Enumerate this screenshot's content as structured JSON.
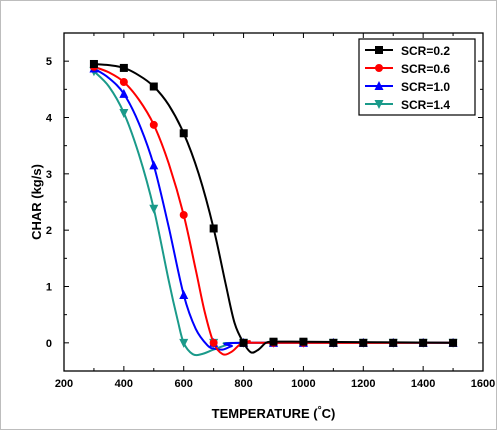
{
  "chart_data": {
    "type": "line",
    "title": "",
    "xlabel": "TEMPERATURE (°C)",
    "ylabel": "CHAR (kg/s)",
    "xlim": [
      200,
      1600
    ],
    "ylim": [
      -0.5,
      5.5
    ],
    "xticks": [
      "200",
      "400",
      "600",
      "800",
      "1000",
      "1200",
      "1400",
      "1600"
    ],
    "yticks": [
      "0",
      "1",
      "2",
      "3",
      "4",
      "5"
    ],
    "grid": false,
    "legend_position": "top-right",
    "series": [
      {
        "name": "SCR=0.2",
        "color": "#000000",
        "marker": "square",
        "x": [
          300,
          400,
          500,
          600,
          700,
          800,
          900,
          1000,
          1100,
          1200,
          1300,
          1400,
          1500
        ],
        "y": [
          4.95,
          4.88,
          4.55,
          3.72,
          2.03,
          0.0,
          0.02,
          0.02,
          0.0,
          0.0,
          0.0,
          0.0,
          0.0
        ]
      },
      {
        "name": "SCR=0.6",
        "color": "#ff0000",
        "marker": "circle",
        "x": [
          300,
          400,
          500,
          600,
          700,
          800,
          900,
          1000,
          1100,
          1200,
          1300,
          1400,
          1500
        ],
        "y": [
          4.9,
          4.63,
          3.87,
          2.27,
          0.0,
          0.0,
          0.0,
          0.0,
          0.0,
          0.0,
          0.0,
          0.0,
          0.0
        ]
      },
      {
        "name": "SCR=1.0",
        "color": "#0000ff",
        "marker": "triangle-up",
        "x": [
          300,
          400,
          500,
          600,
          700,
          800,
          900,
          1000,
          1100,
          1200,
          1300,
          1400,
          1500
        ],
        "y": [
          4.87,
          4.42,
          3.15,
          0.85,
          0.0,
          0.0,
          0.0,
          0.0,
          0.0,
          0.0,
          0.0,
          0.0,
          0.0
        ]
      },
      {
        "name": "SCR=1.4",
        "color": "#1a9a8a",
        "marker": "triangle-down",
        "x": [
          300,
          400,
          500,
          600,
          700,
          800,
          900,
          1000,
          1100,
          1200,
          1300,
          1400,
          1500
        ],
        "y": [
          4.82,
          4.08,
          2.38,
          0.0,
          0.0,
          0.0,
          0.0,
          0.0,
          0.0,
          0.0,
          0.0,
          0.0,
          0.0
        ]
      }
    ],
    "curve_shape": {
      "SCR=0.2": [
        [
          300,
          4.95
        ],
        [
          350,
          4.93
        ],
        [
          400,
          4.88
        ],
        [
          450,
          4.75
        ],
        [
          500,
          4.55
        ],
        [
          550,
          4.22
        ],
        [
          600,
          3.72
        ],
        [
          650,
          3.0
        ],
        [
          700,
          2.03
        ],
        [
          740,
          1.05
        ],
        [
          770,
          0.35
        ],
        [
          800,
          0.0
        ],
        [
          825,
          -0.17
        ],
        [
          850,
          -0.12
        ],
        [
          875,
          0.0
        ],
        [
          900,
          0.02
        ],
        [
          1000,
          0.02
        ],
        [
          1500,
          0.0
        ]
      ],
      "SCR=0.6": [
        [
          300,
          4.9
        ],
        [
          350,
          4.8
        ],
        [
          400,
          4.63
        ],
        [
          450,
          4.32
        ],
        [
          500,
          3.87
        ],
        [
          550,
          3.18
        ],
        [
          600,
          2.27
        ],
        [
          640,
          1.3
        ],
        [
          670,
          0.55
        ],
        [
          700,
          0.0
        ],
        [
          730,
          -0.2
        ],
        [
          760,
          -0.16
        ],
        [
          790,
          -0.02
        ],
        [
          820,
          0.03
        ],
        [
          850,
          0.0
        ],
        [
          1500,
          0.0
        ]
      ],
      "SCR=1.0": [
        [
          300,
          4.87
        ],
        [
          350,
          4.7
        ],
        [
          400,
          4.42
        ],
        [
          450,
          3.9
        ],
        [
          500,
          3.15
        ],
        [
          550,
          2.05
        ],
        [
          600,
          0.85
        ],
        [
          640,
          0.25
        ],
        [
          680,
          -0.05
        ],
        [
          700,
          -0.1
        ],
        [
          730,
          -0.12
        ],
        [
          760,
          -0.06
        ],
        [
          800,
          0.0
        ],
        [
          1500,
          0.0
        ]
      ],
      "SCR=1.4": [
        [
          300,
          4.82
        ],
        [
          350,
          4.55
        ],
        [
          400,
          4.08
        ],
        [
          450,
          3.35
        ],
        [
          500,
          2.38
        ],
        [
          550,
          1.1
        ],
        [
          580,
          0.4
        ],
        [
          600,
          0.0
        ],
        [
          630,
          -0.2
        ],
        [
          660,
          -0.2
        ],
        [
          700,
          -0.12
        ],
        [
          750,
          -0.03
        ],
        [
          800,
          0.0
        ],
        [
          1500,
          0.0
        ]
      ]
    }
  }
}
